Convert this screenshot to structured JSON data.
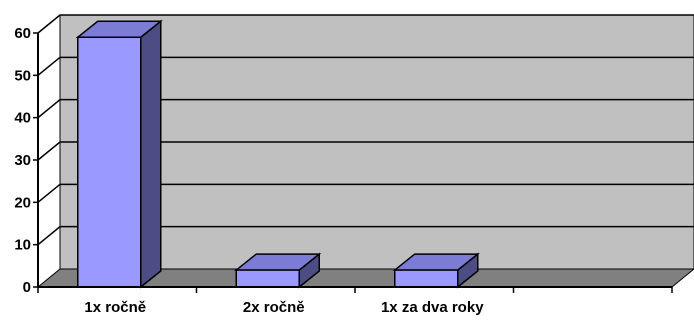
{
  "chart_data": {
    "type": "bar",
    "style": "3d-column",
    "categories": [
      "1x ročně",
      "2x ročně",
      "1x za dva roky",
      ""
    ],
    "values": [
      59,
      4,
      4,
      null
    ],
    "ylim": [
      0,
      60
    ],
    "yticks": [
      0,
      10,
      20,
      30,
      40,
      50,
      60
    ],
    "grid": true,
    "legend": "none",
    "colors": {
      "bar_front": "#9999ff",
      "bar_side": "#4d4d85",
      "bar_top": "#7c7cd6",
      "wall": "#c0c0c0",
      "floor": "#808080",
      "gridline": "#000000",
      "axis": "#000000"
    }
  }
}
